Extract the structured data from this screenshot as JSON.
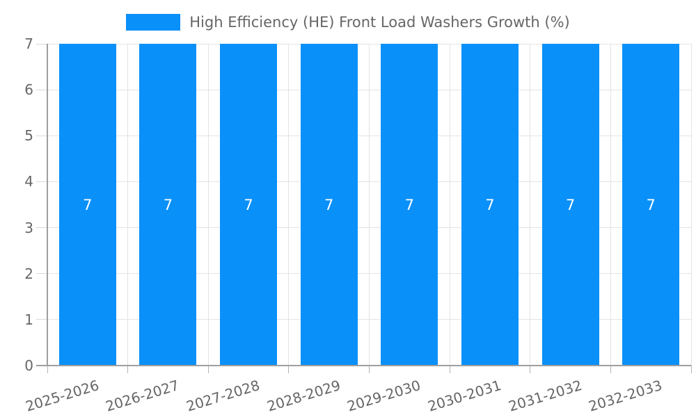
{
  "legend": {
    "label": "High Efficiency (HE) Front Load Washers Growth (%)"
  },
  "chart_data": {
    "type": "bar",
    "title": "High Efficiency (HE) Front Load Washers Growth (%)",
    "categories": [
      "2025-2026",
      "2026-2027",
      "2027-2028",
      "2028-2029",
      "2029-2030",
      "2030-2031",
      "2031-2032",
      "2032-2033"
    ],
    "series": [
      {
        "name": "High Efficiency (HE) Front Load Washers Growth (%)",
        "values": [
          7,
          7,
          7,
          7,
          7,
          7,
          7,
          7
        ]
      }
    ],
    "data_labels_shown": true,
    "xlabel": "",
    "ylabel": "",
    "ylim": [
      0,
      7
    ],
    "yticks": [
      0,
      1,
      2,
      3,
      4,
      5,
      6,
      7
    ],
    "grid": true,
    "legend_position": "top",
    "x_tick_rotation_deg": -17,
    "colors": {
      "bar": "#0a90f9",
      "data_label": "#ffffff",
      "tick_text": "#666666",
      "legend_text": "#666666",
      "grid_line": "#e3e3e3",
      "axis_line": "#9e9e9e",
      "y_tick_mark": "#d9d9d9",
      "x_tick_mark": "#b3b3b3"
    }
  }
}
